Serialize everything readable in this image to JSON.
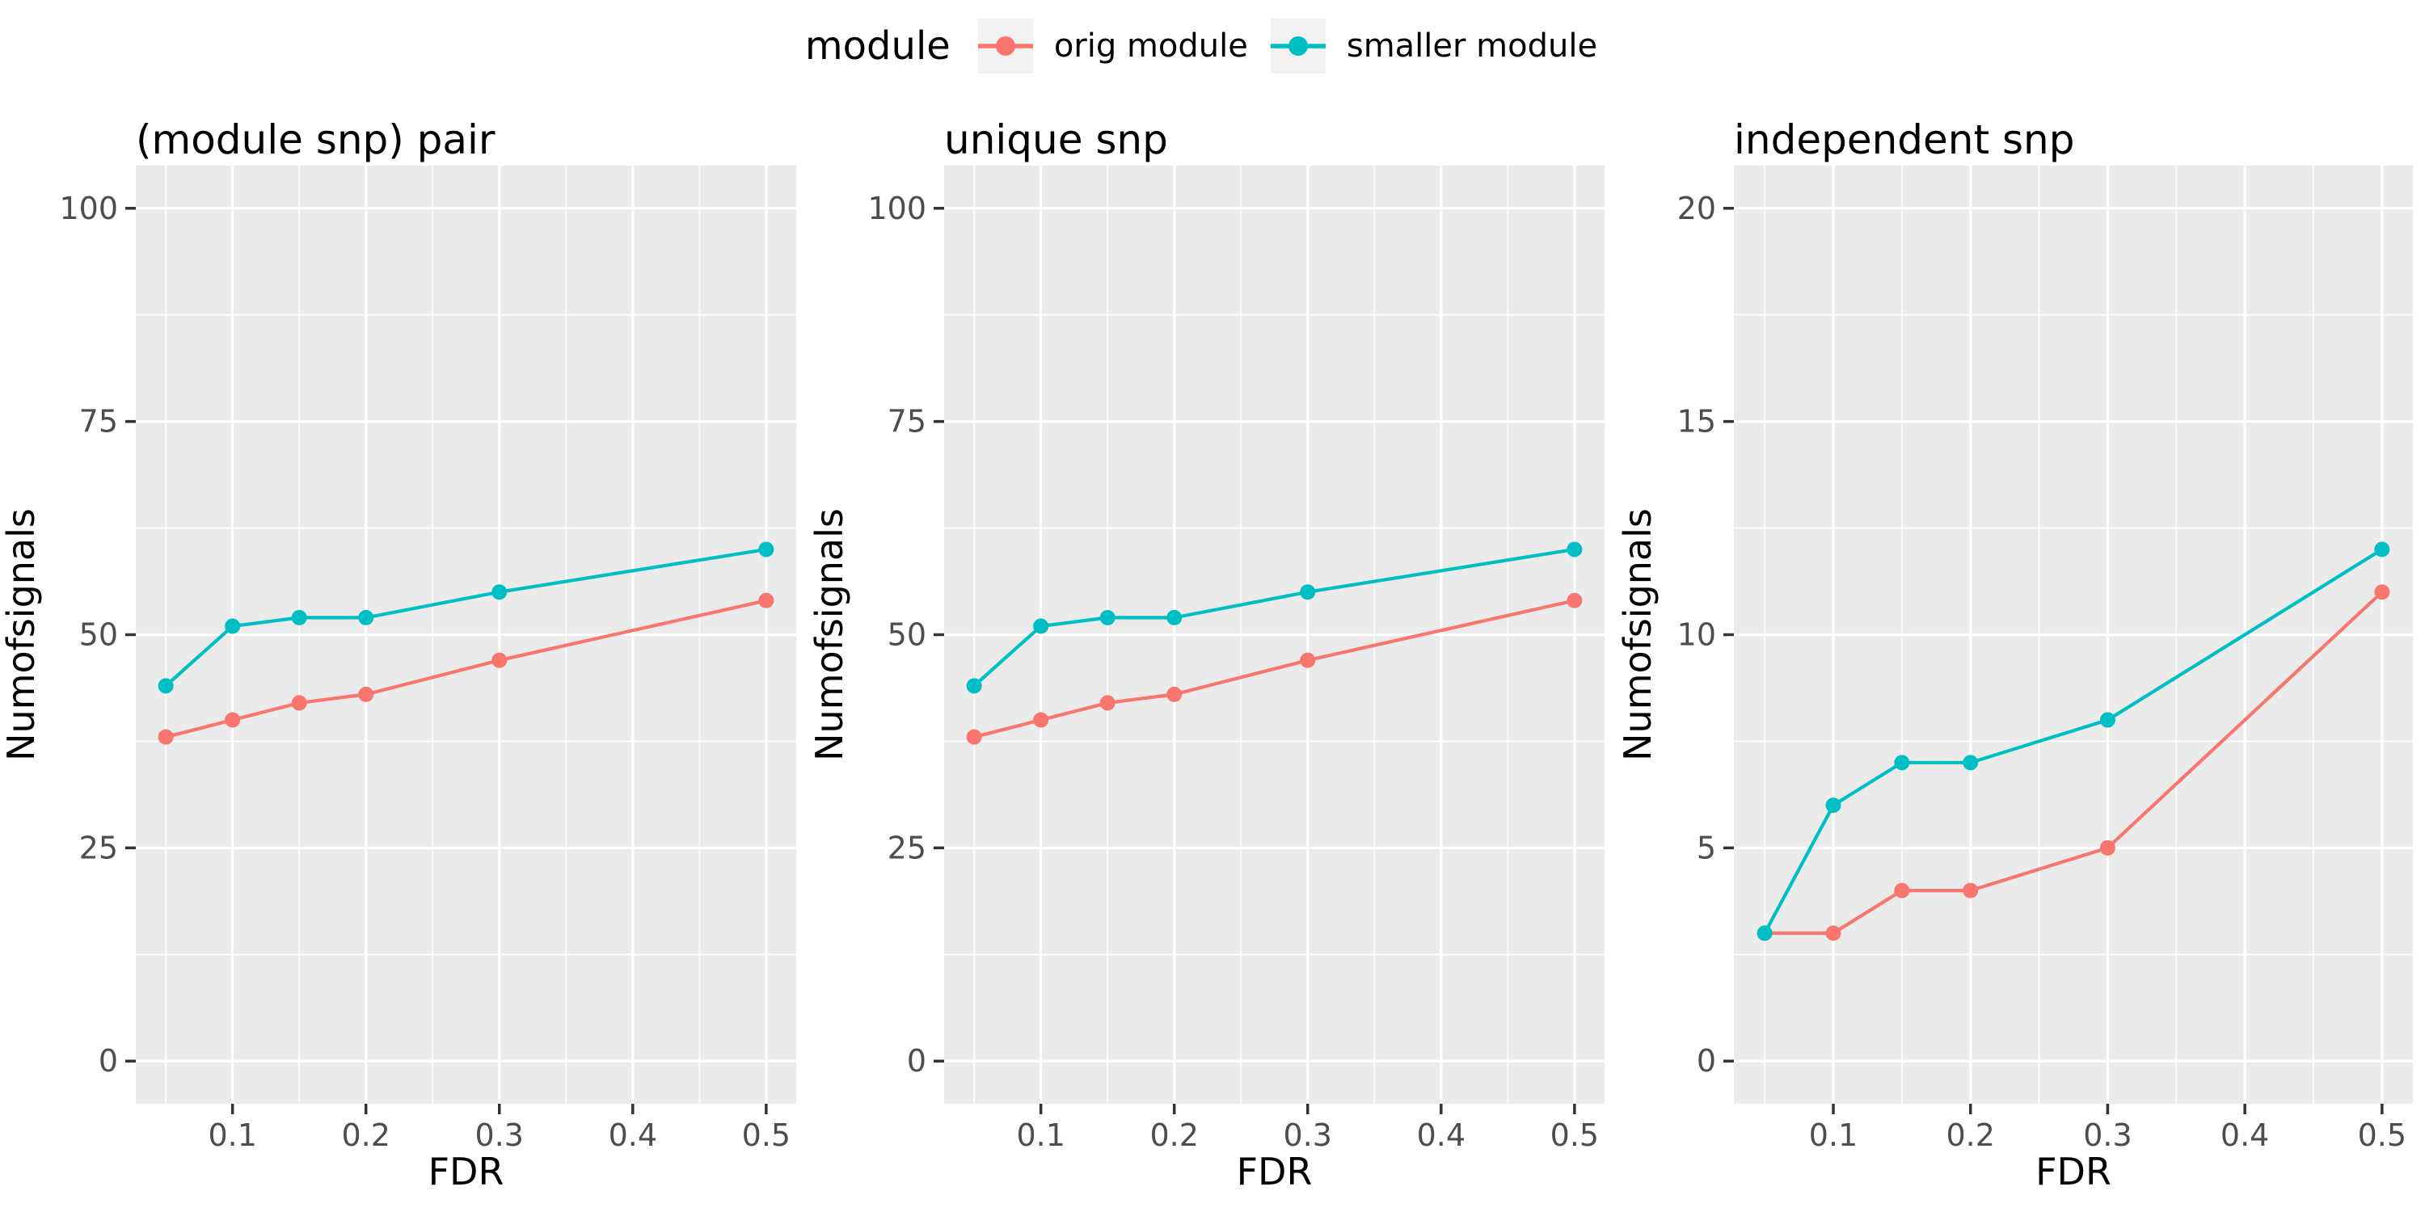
{
  "legend": {
    "title": "module",
    "items": [
      {
        "label": "orig module",
        "color": "#F8766D"
      },
      {
        "label": "smaller module",
        "color": "#00BFC4"
      }
    ]
  },
  "colors": {
    "panel_bg": "#EBEBEB",
    "grid": "#FFFFFF",
    "tick_text": "#4D4D4D",
    "tick_mark": "#333333",
    "title_text": "#000000",
    "legend_key_bg": "#F2F2F2",
    "orig_module": "#F8766D",
    "smaller_module": "#00BFC4"
  },
  "chart_data": [
    {
      "type": "line",
      "title": "(module snp) pair",
      "xlabel": "FDR",
      "ylabel": "Numofsignals",
      "x": [
        0.05,
        0.1,
        0.15,
        0.2,
        0.3,
        0.5
      ],
      "series": [
        {
          "name": "orig module",
          "color": "#F8766D",
          "values": [
            38,
            40,
            42,
            43,
            47,
            54
          ]
        },
        {
          "name": "smaller module",
          "color": "#00BFC4",
          "values": [
            44,
            51,
            52,
            52,
            55,
            60
          ]
        }
      ],
      "xlim": [
        0.05,
        0.5
      ],
      "ylim": [
        0,
        100
      ],
      "x_ticks": [
        0.1,
        0.2,
        0.3,
        0.4,
        0.5
      ],
      "y_ticks": [
        0,
        25,
        50,
        75,
        100
      ],
      "grid": true,
      "legend_position": "top"
    },
    {
      "type": "line",
      "title": "unique snp",
      "xlabel": "FDR",
      "ylabel": "Numofsignals",
      "x": [
        0.05,
        0.1,
        0.15,
        0.2,
        0.3,
        0.5
      ],
      "series": [
        {
          "name": "orig module",
          "color": "#F8766D",
          "values": [
            38,
            40,
            42,
            43,
            47,
            54
          ]
        },
        {
          "name": "smaller module",
          "color": "#00BFC4",
          "values": [
            44,
            51,
            52,
            52,
            55,
            60
          ]
        }
      ],
      "xlim": [
        0.05,
        0.5
      ],
      "ylim": [
        0,
        100
      ],
      "x_ticks": [
        0.1,
        0.2,
        0.3,
        0.4,
        0.5
      ],
      "y_ticks": [
        0,
        25,
        50,
        75,
        100
      ],
      "grid": true,
      "legend_position": "top"
    },
    {
      "type": "line",
      "title": "independent snp",
      "xlabel": "FDR",
      "ylabel": "Numofsignals",
      "x": [
        0.05,
        0.1,
        0.15,
        0.2,
        0.3,
        0.5
      ],
      "series": [
        {
          "name": "orig module",
          "color": "#F8766D",
          "values": [
            3,
            3,
            4,
            4,
            5,
            11
          ]
        },
        {
          "name": "smaller module",
          "color": "#00BFC4",
          "values": [
            3,
            6,
            7,
            7,
            8,
            12
          ]
        }
      ],
      "xlim": [
        0.05,
        0.5
      ],
      "ylim": [
        0,
        20
      ],
      "x_ticks": [
        0.1,
        0.2,
        0.3,
        0.4,
        0.5
      ],
      "y_ticks": [
        0,
        5,
        10,
        15,
        20
      ],
      "grid": true,
      "legend_position": "top"
    }
  ]
}
